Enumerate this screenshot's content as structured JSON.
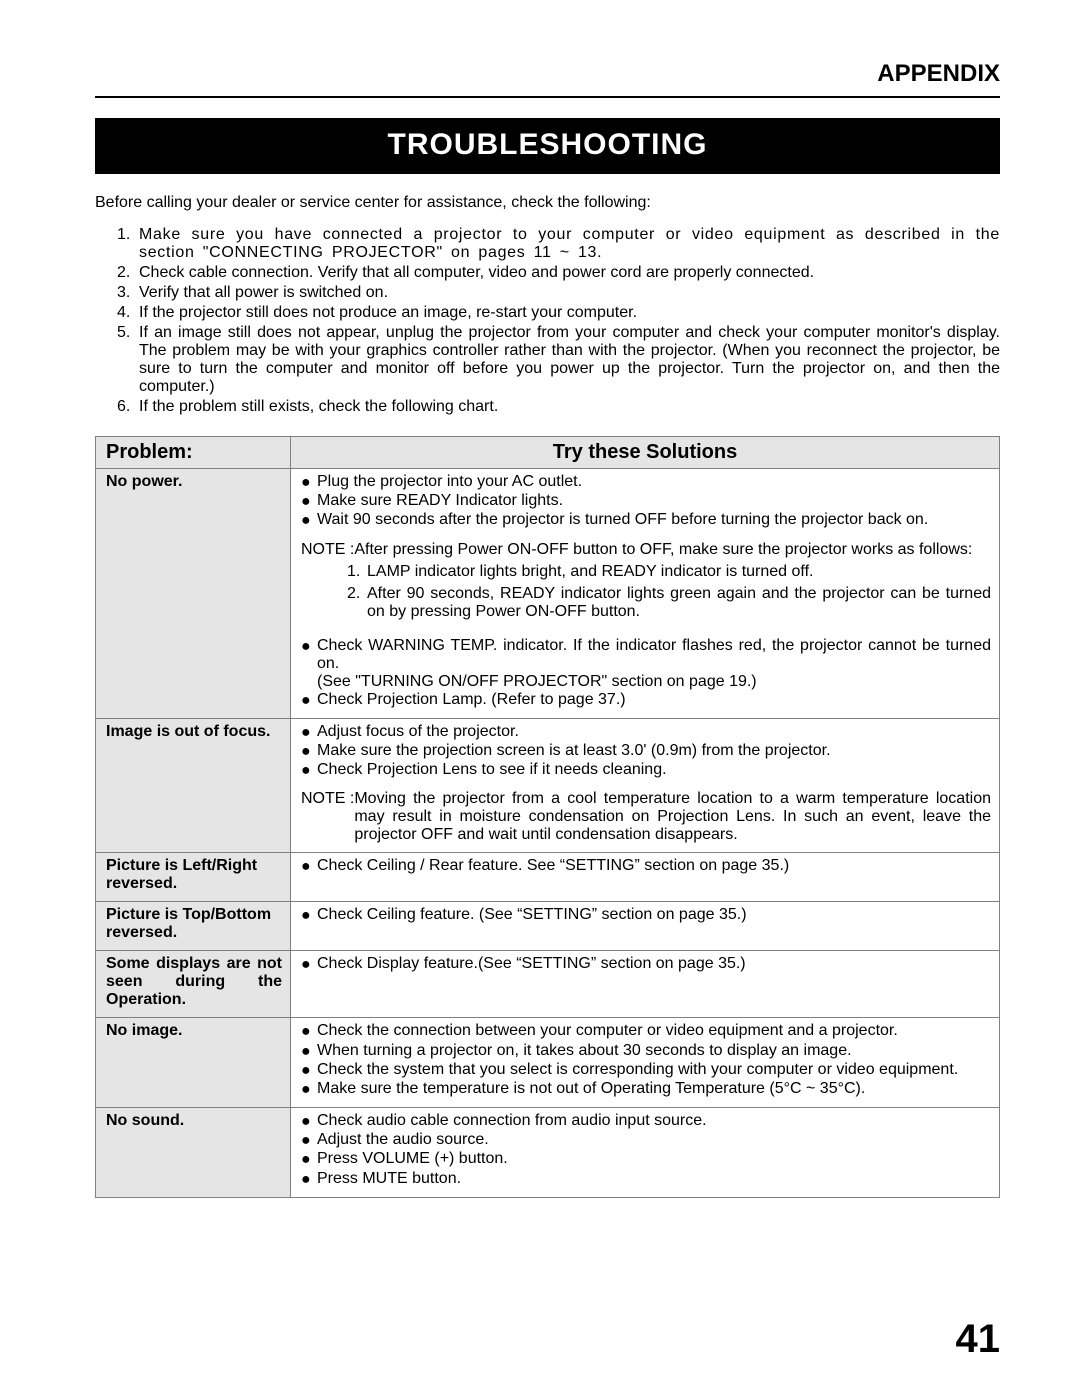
{
  "header": {
    "appendix": "APPENDIX"
  },
  "title": "TROUBLESHOOTING",
  "intro": "Before calling your dealer or service center for assistance, check the following:",
  "steps": [
    {
      "n": "1.",
      "t": "Make sure you have connected a projector to your computer or video equipment as described in the section \"CONNECTING PROJECTOR\"  on pages 11 ~ 13.",
      "justified": true,
      "spaced": true
    },
    {
      "n": "2.",
      "t": "Check cable connection.  Verify that all computer, video and power cord are properly connected."
    },
    {
      "n": "3.",
      "t": "Verify that all power is switched on."
    },
    {
      "n": "4.",
      "t": "If the projector still does not produce an image, re-start your computer."
    },
    {
      "n": "5.",
      "t": "If an image still does not appear, unplug the projector from your computer and check your computer monitor's display.  The problem may be with your graphics controller rather than with the projector.  (When you reconnect the projector, be sure to turn the computer and monitor off before you power up the projector.  Turn the projector on, and then the computer.)",
      "justified": true
    },
    {
      "n": "6.",
      "t": "If the problem still exists, check the following chart."
    }
  ],
  "table": {
    "headers": {
      "problem": "Problem:",
      "solutions": "Try these Solutions"
    },
    "rows": [
      {
        "problem": "No power.",
        "bullets": [
          "Plug the projector into your AC outlet.",
          "Make sure READY Indicator lights.",
          "Wait 90 seconds after the projector is turned OFF before turning the projector back on."
        ],
        "note": {
          "label": "NOTE : ",
          "body": "After pressing Power ON-OFF button to OFF, make sure the projector works as follows:",
          "subs": [
            {
              "n": "1.",
              "t": "LAMP indicator lights bright, and READY indicator is turned off."
            },
            {
              "n": "2.",
              "t": "After 90 seconds, READY indicator lights green again and the projector can be turned on by pressing Power ON-OFF button."
            }
          ]
        },
        "bullets2": [
          {
            "t": "Check WARNING TEMP. indicator.  If the indicator flashes red, the projector cannot be turned on.",
            "justify": true
          },
          {
            "plain": true,
            "t": "(See \"TURNING ON/OFF PROJECTOR\" section on page 19.)"
          },
          {
            "t": "Check Projection Lamp.  (Refer to page 37.)"
          }
        ]
      },
      {
        "problem": "Image is out of focus.",
        "bullets": [
          "Adjust focus of the projector.",
          "Make sure the projection screen is at least 3.0' (0.9m) from the projector.",
          "Check Projection Lens to see if it needs cleaning."
        ],
        "note": {
          "label": "NOTE : ",
          "body": "Moving the projector from a cool temperature location to a warm temperature location may result in moisture condensation on Projection Lens.  In such an event, leave the projector OFF and wait until condensation disappears."
        }
      },
      {
        "problem": "Picture is Left/Right reversed.",
        "bullets": [
          "Check Ceiling / Rear feature.  See “SETTING” section on page 35.)"
        ]
      },
      {
        "problem": "Picture is Top/Bottom reversed.",
        "bullets": [
          "Check Ceiling feature.  (See “SETTING” section on page 35.)"
        ]
      },
      {
        "problem": "Some displays are not seen during the Operation.",
        "problemJustified": true,
        "bullets": [
          "Check Display feature.(See “SETTING” section on page 35.)"
        ]
      },
      {
        "problem": "No image.",
        "bullets": [
          "Check the connection between your computer or video equipment and a projector.",
          "When turning a projector on, it takes about 30 seconds to display an image.",
          {
            "t": "Check the system that you select is corresponding with your computer or video equipment.",
            "justify": true
          },
          "Make sure the temperature is not out of Operating Temperature (5°C ~ 35°C)."
        ]
      },
      {
        "problem": "No sound.",
        "bullets": [
          "Check audio cable connection from audio input source.",
          "Adjust the audio source.",
          "Press VOLUME (+) button.",
          "Press MUTE button."
        ]
      }
    ]
  },
  "pageNumber": "41"
}
